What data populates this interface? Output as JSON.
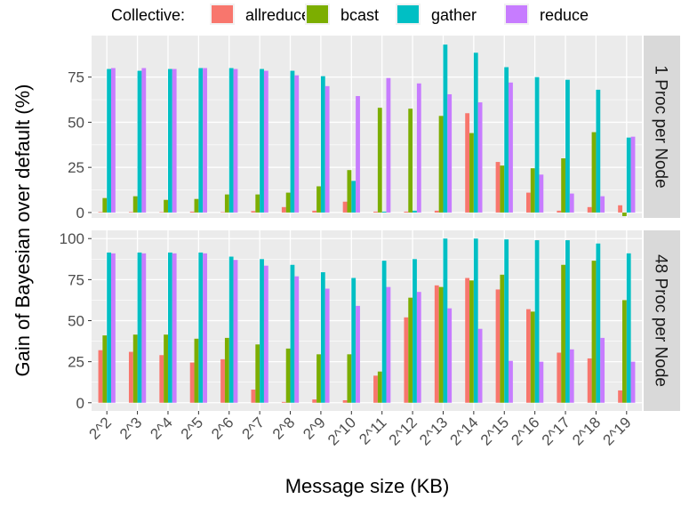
{
  "chart_data": {
    "type": "bar",
    "xlabel": "Message size (KB)",
    "ylabel": "Gain of Bayesian over default (%)",
    "legend": {
      "title": "Collective:",
      "placement": "top"
    },
    "categories": [
      "2^2",
      "2^3",
      "2^4",
      "2^5",
      "2^6",
      "2^7",
      "2^8",
      "2^9",
      "2^10",
      "2^11",
      "2^12",
      "2^13",
      "2^14",
      "2^15",
      "2^16",
      "2^17",
      "2^18",
      "2^19"
    ],
    "series_order": [
      "allreduce",
      "bcast",
      "gather",
      "reduce"
    ],
    "colors": {
      "allreduce": "#F8766D",
      "bcast": "#7CAE00",
      "gather": "#00BFC4",
      "reduce": "#C77CFF"
    },
    "grid": true,
    "panel_background": "#EBEBEB",
    "strip_background": "#D9D9D9",
    "panels": [
      {
        "strip_label": "1 Proc per Node",
        "ylim": [
          -3,
          98
        ],
        "yticks": [
          0,
          25,
          50,
          75
        ],
        "series": [
          {
            "name": "allreduce",
            "values": [
              0.3,
              0.3,
              0.2,
              0.5,
              0.2,
              0.8,
              3,
              1,
              6,
              0.5,
              0.5,
              1,
              55,
              28,
              11,
              1,
              3,
              4
            ]
          },
          {
            "name": "bcast",
            "values": [
              8,
              9,
              7,
              7.5,
              10,
              10,
              11,
              14.5,
              23.5,
              58,
              57.5,
              53.5,
              44,
              26,
              24.5,
              30,
              44.5,
              -2
            ]
          },
          {
            "name": "gather",
            "values": [
              79.5,
              78.5,
              79.5,
              80,
              80,
              79.5,
              78.5,
              75.5,
              17.5,
              0.5,
              1,
              93,
              88.5,
              80.5,
              75,
              73.5,
              68,
              41.5
            ]
          },
          {
            "name": "reduce",
            "values": [
              80,
              80,
              79.5,
              80,
              79.5,
              78.5,
              76,
              70,
              64.5,
              74.5,
              71.5,
              65.5,
              61,
              72,
              21,
              10.5,
              9,
              42
            ]
          }
        ]
      },
      {
        "strip_label": "48 Proc per Node",
        "ylim": [
          -5,
          105
        ],
        "yticks": [
          0,
          25,
          50,
          75,
          100
        ],
        "series": [
          {
            "name": "allreduce",
            "values": [
              32,
              31,
              29,
              24.5,
              26.5,
              8,
              0.5,
              2,
              1.5,
              16.5,
              52,
              71.5,
              76,
              69,
              57,
              30.5,
              27,
              7.5
            ]
          },
          {
            "name": "bcast",
            "values": [
              41,
              41.5,
              41.5,
              39,
              39.5,
              35.5,
              33,
              29.5,
              29.5,
              19,
              64,
              70.5,
              74.5,
              78,
              55.5,
              84,
              86.5,
              62.5
            ]
          },
          {
            "name": "gather",
            "values": [
              91.5,
              91.5,
              91.5,
              91.5,
              89,
              87.5,
              84,
              79.5,
              76,
              86.5,
              87.5,
              100,
              100,
              99.5,
              99,
              99,
              97,
              91
            ]
          },
          {
            "name": "reduce",
            "values": [
              91,
              91,
              91,
              91,
              87,
              83.5,
              77,
              69.5,
              59,
              70.5,
              67.5,
              57.5,
              45,
              25.5,
              25,
              32.5,
              39.5,
              25
            ]
          }
        ]
      }
    ]
  }
}
